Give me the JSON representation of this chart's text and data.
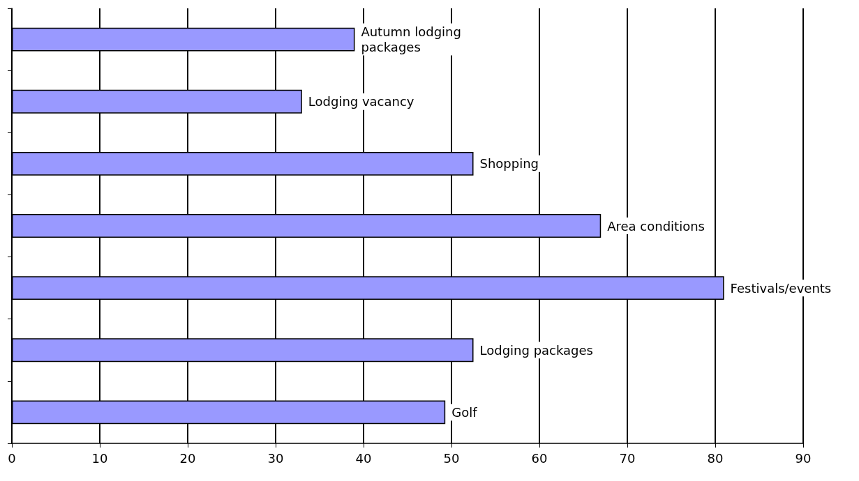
{
  "chart_data": {
    "type": "bar",
    "orientation": "horizontal",
    "categories": [
      "Autumn lodging packages",
      "Lodging vacancy",
      "Shopping",
      "Area conditions",
      "Festivals/events",
      "Lodging packages",
      "Golf"
    ],
    "values": [
      39,
      33,
      52.5,
      67,
      81,
      52.5,
      49.3
    ],
    "color": "#9999ff",
    "xlim": [
      0,
      90
    ],
    "xticks": [
      0,
      10,
      20,
      30,
      40,
      50,
      60,
      70,
      80,
      90
    ],
    "grid": "x"
  }
}
